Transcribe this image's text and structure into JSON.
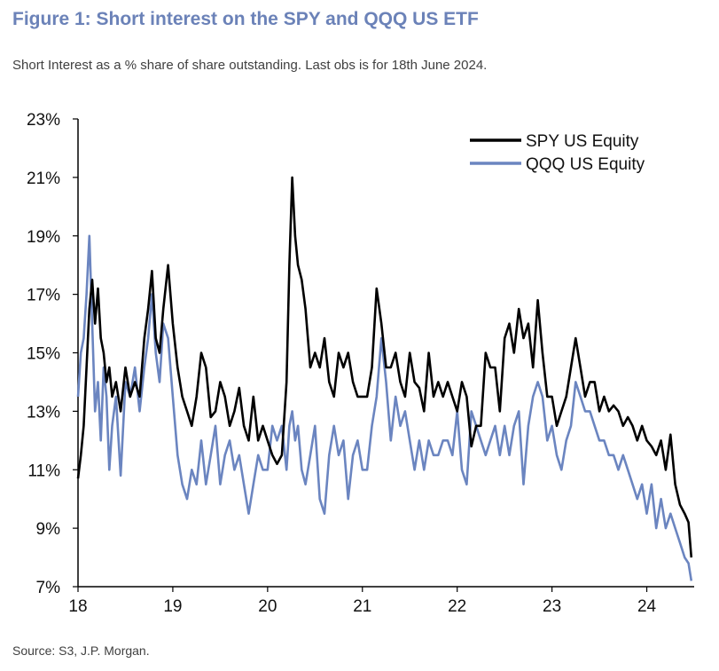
{
  "header": {
    "title": "Figure 1: Short interest on the SPY and QQQ US ETF",
    "subtitle": "Short Interest as a % share of share outstanding. Last obs is for 18th June 2024."
  },
  "footer": {
    "source": "Source: S3, J.P. Morgan."
  },
  "colors": {
    "title": "#6b82b8",
    "spy": "#000000",
    "qqq": "#6b85c0"
  },
  "chart_data": {
    "type": "line",
    "title": "",
    "xlabel": "",
    "ylabel": "",
    "xlim": [
      2018.0,
      2024.5
    ],
    "ylim": [
      7,
      23
    ],
    "x_ticks": [
      2018,
      2019,
      2020,
      2021,
      2022,
      2023,
      2024
    ],
    "x_tick_labels": [
      "18",
      "19",
      "20",
      "21",
      "22",
      "23",
      "24"
    ],
    "y_ticks": [
      7,
      9,
      11,
      13,
      15,
      17,
      19,
      21,
      23
    ],
    "y_tick_labels": [
      "7%",
      "9%",
      "11%",
      "13%",
      "15%",
      "17%",
      "19%",
      "21%",
      "23%"
    ],
    "grid": false,
    "legend": "top-right",
    "series": [
      {
        "name": "SPY US Equity",
        "color": "#000000",
        "x": [
          2018.0,
          2018.03,
          2018.06,
          2018.09,
          2018.12,
          2018.15,
          2018.18,
          2018.21,
          2018.24,
          2018.27,
          2018.3,
          2018.33,
          2018.36,
          2018.4,
          2018.45,
          2018.5,
          2018.55,
          2018.6,
          2018.65,
          2018.7,
          2018.74,
          2018.78,
          2018.82,
          2018.86,
          2018.9,
          2018.95,
          2019.0,
          2019.05,
          2019.1,
          2019.15,
          2019.2,
          2019.25,
          2019.3,
          2019.35,
          2019.4,
          2019.45,
          2019.5,
          2019.55,
          2019.6,
          2019.65,
          2019.7,
          2019.75,
          2019.8,
          2019.85,
          2019.9,
          2019.95,
          2020.0,
          2020.05,
          2020.1,
          2020.15,
          2020.2,
          2020.23,
          2020.26,
          2020.29,
          2020.32,
          2020.36,
          2020.4,
          2020.45,
          2020.5,
          2020.55,
          2020.6,
          2020.65,
          2020.7,
          2020.75,
          2020.8,
          2020.85,
          2020.9,
          2020.95,
          2021.0,
          2021.05,
          2021.1,
          2021.15,
          2021.2,
          2021.25,
          2021.3,
          2021.35,
          2021.4,
          2021.45,
          2021.5,
          2021.55,
          2021.6,
          2021.65,
          2021.7,
          2021.75,
          2021.8,
          2021.85,
          2021.9,
          2021.95,
          2022.0,
          2022.05,
          2022.1,
          2022.15,
          2022.2,
          2022.25,
          2022.3,
          2022.35,
          2022.4,
          2022.45,
          2022.5,
          2022.55,
          2022.6,
          2022.65,
          2022.7,
          2022.75,
          2022.8,
          2022.85,
          2022.9,
          2022.95,
          2023.0,
          2023.05,
          2023.1,
          2023.15,
          2023.2,
          2023.25,
          2023.3,
          2023.35,
          2023.4,
          2023.45,
          2023.5,
          2023.55,
          2023.6,
          2023.65,
          2023.7,
          2023.75,
          2023.8,
          2023.85,
          2023.9,
          2023.95,
          2024.0,
          2024.05,
          2024.1,
          2024.15,
          2024.2,
          2024.25,
          2024.3,
          2024.35,
          2024.4,
          2024.44,
          2024.47
        ],
        "values": [
          10.7,
          11.5,
          12.5,
          14.5,
          16.5,
          17.5,
          16.0,
          17.2,
          15.5,
          15.0,
          14.0,
          14.5,
          13.5,
          14.0,
          13.0,
          14.5,
          13.5,
          14.0,
          13.5,
          15.5,
          16.5,
          17.8,
          15.5,
          15.0,
          16.5,
          18.0,
          16.0,
          14.5,
          13.5,
          13.0,
          12.5,
          13.5,
          15.0,
          14.5,
          12.8,
          13.0,
          14.0,
          13.5,
          12.5,
          13.0,
          13.8,
          12.5,
          12.0,
          13.5,
          12.0,
          12.5,
          12.0,
          11.5,
          11.2,
          11.5,
          14.0,
          18.0,
          21.0,
          19.0,
          18.0,
          17.5,
          16.5,
          14.5,
          15.0,
          14.5,
          15.5,
          14.0,
          13.5,
          15.0,
          14.5,
          15.0,
          14.0,
          13.5,
          13.5,
          13.5,
          14.5,
          17.2,
          16.0,
          14.5,
          14.5,
          15.0,
          14.0,
          13.5,
          15.0,
          14.0,
          13.8,
          13.0,
          15.0,
          13.5,
          14.0,
          13.5,
          14.0,
          13.5,
          13.0,
          14.0,
          13.5,
          11.8,
          12.5,
          12.5,
          15.0,
          14.5,
          14.5,
          13.0,
          15.5,
          16.0,
          15.0,
          16.5,
          15.5,
          16.0,
          14.5,
          16.8,
          15.0,
          13.5,
          13.5,
          12.5,
          13.0,
          13.5,
          14.5,
          15.5,
          14.5,
          13.5,
          14.0,
          14.0,
          13.0,
          13.5,
          13.0,
          13.2,
          13.0,
          12.5,
          12.8,
          12.5,
          12.0,
          12.5,
          12.0,
          11.8,
          11.5,
          12.0,
          11.0,
          12.2,
          10.5,
          9.8,
          9.5,
          9.2,
          8.0
        ],
        "last_value_approx": 8.0
      },
      {
        "name": "QQQ US Equity",
        "color": "#6b85c0",
        "x": [
          2018.0,
          2018.03,
          2018.06,
          2018.09,
          2018.12,
          2018.15,
          2018.18,
          2018.21,
          2018.24,
          2018.27,
          2018.3,
          2018.33,
          2018.36,
          2018.4,
          2018.45,
          2018.5,
          2018.55,
          2018.6,
          2018.65,
          2018.7,
          2018.74,
          2018.78,
          2018.82,
          2018.86,
          2018.9,
          2018.95,
          2019.0,
          2019.05,
          2019.1,
          2019.15,
          2019.2,
          2019.25,
          2019.3,
          2019.35,
          2019.4,
          2019.45,
          2019.5,
          2019.55,
          2019.6,
          2019.65,
          2019.7,
          2019.75,
          2019.8,
          2019.85,
          2019.9,
          2019.95,
          2020.0,
          2020.05,
          2020.1,
          2020.15,
          2020.2,
          2020.23,
          2020.26,
          2020.29,
          2020.32,
          2020.36,
          2020.4,
          2020.45,
          2020.5,
          2020.55,
          2020.6,
          2020.65,
          2020.7,
          2020.75,
          2020.8,
          2020.85,
          2020.9,
          2020.95,
          2021.0,
          2021.05,
          2021.1,
          2021.15,
          2021.2,
          2021.25,
          2021.3,
          2021.35,
          2021.4,
          2021.45,
          2021.5,
          2021.55,
          2021.6,
          2021.65,
          2021.7,
          2021.75,
          2021.8,
          2021.85,
          2021.9,
          2021.95,
          2022.0,
          2022.05,
          2022.1,
          2022.15,
          2022.2,
          2022.25,
          2022.3,
          2022.35,
          2022.4,
          2022.45,
          2022.5,
          2022.55,
          2022.6,
          2022.65,
          2022.7,
          2022.75,
          2022.8,
          2022.85,
          2022.9,
          2022.95,
          2023.0,
          2023.05,
          2023.1,
          2023.15,
          2023.2,
          2023.25,
          2023.3,
          2023.35,
          2023.4,
          2023.45,
          2023.5,
          2023.55,
          2023.6,
          2023.65,
          2023.7,
          2023.75,
          2023.8,
          2023.85,
          2023.9,
          2023.95,
          2024.0,
          2024.05,
          2024.1,
          2024.15,
          2024.2,
          2024.25,
          2024.3,
          2024.35,
          2024.4,
          2024.44,
          2024.47
        ],
        "values": [
          13.5,
          15.0,
          15.5,
          17.0,
          19.0,
          16.0,
          13.0,
          14.0,
          12.0,
          14.5,
          13.5,
          11.0,
          12.5,
          13.5,
          10.8,
          14.0,
          13.5,
          14.5,
          13.0,
          14.5,
          15.5,
          17.0,
          15.0,
          14.0,
          16.0,
          15.5,
          13.5,
          11.5,
          10.5,
          10.0,
          11.0,
          10.5,
          12.0,
          10.5,
          11.5,
          12.5,
          10.5,
          11.5,
          12.0,
          11.0,
          11.5,
          10.5,
          9.5,
          10.5,
          11.5,
          11.0,
          11.0,
          12.5,
          12.0,
          12.5,
          11.0,
          12.5,
          13.0,
          12.0,
          12.5,
          11.0,
          10.5,
          11.5,
          12.5,
          10.0,
          9.5,
          11.5,
          12.5,
          11.5,
          12.0,
          10.0,
          11.5,
          12.0,
          11.0,
          11.0,
          12.5,
          13.5,
          15.5,
          14.0,
          12.0,
          13.5,
          12.5,
          13.0,
          12.0,
          11.0,
          12.0,
          11.0,
          12.0,
          11.5,
          11.5,
          12.0,
          12.0,
          11.5,
          13.0,
          11.0,
          10.5,
          13.0,
          12.5,
          12.0,
          11.5,
          12.0,
          12.5,
          11.5,
          12.5,
          11.5,
          12.5,
          13.0,
          10.5,
          12.5,
          13.5,
          14.0,
          13.5,
          12.0,
          12.5,
          11.5,
          11.0,
          12.0,
          12.5,
          14.0,
          13.5,
          13.0,
          13.0,
          12.5,
          12.0,
          12.0,
          11.5,
          11.5,
          11.0,
          11.5,
          11.0,
          10.5,
          10.0,
          10.5,
          9.5,
          10.5,
          9.0,
          10.0,
          9.0,
          9.5,
          9.0,
          8.5,
          8.0,
          7.8,
          7.2
        ],
        "last_value_approx": 7.2
      }
    ]
  }
}
